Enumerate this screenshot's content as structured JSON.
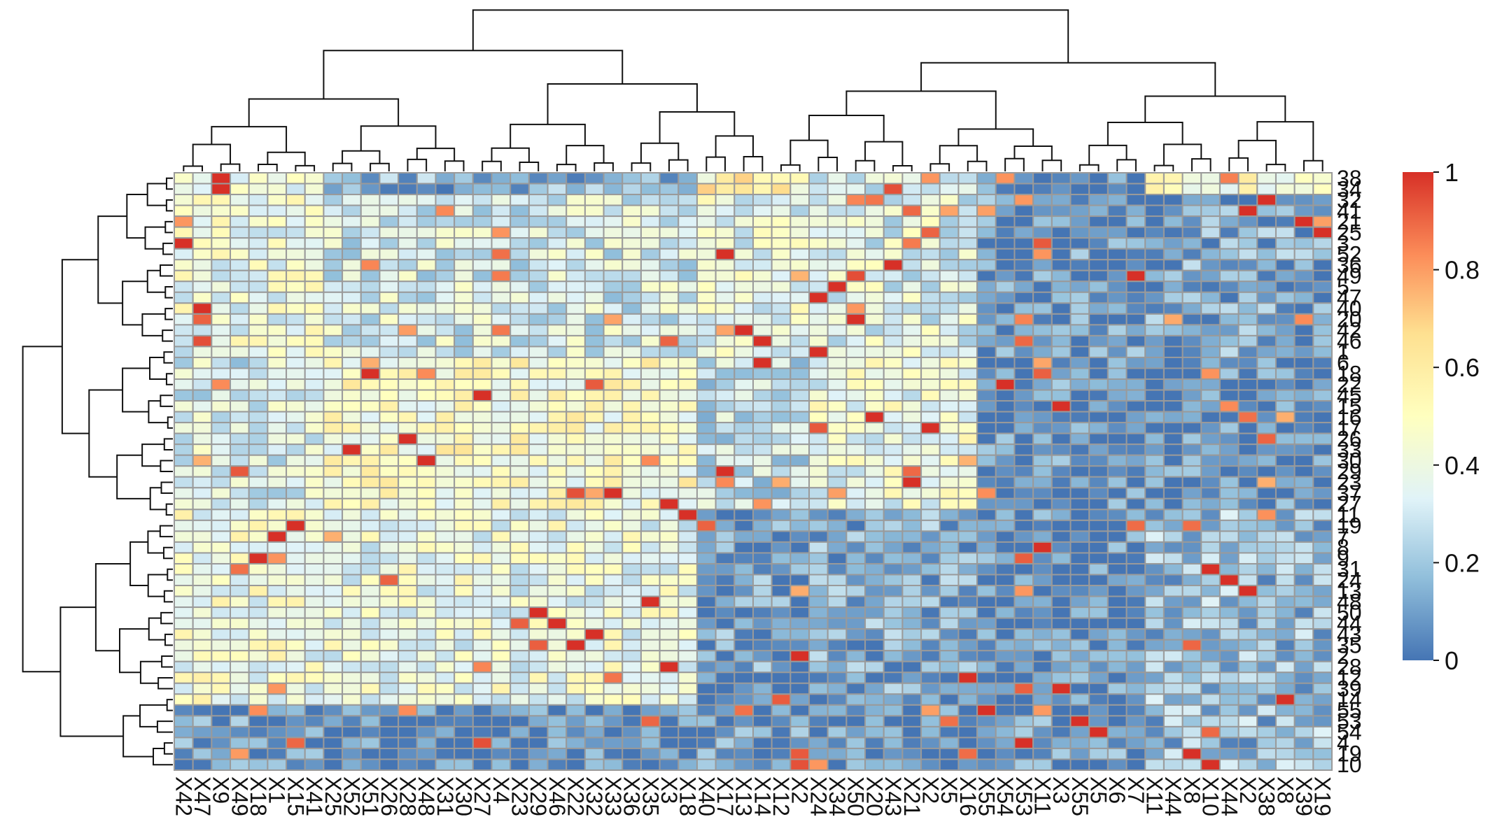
{
  "chart_data": {
    "type": "heatmap",
    "title": "",
    "xlabel": "",
    "ylabel": "",
    "value_range": [
      0,
      1
    ],
    "colorbar": {
      "ticks": [
        0,
        0.2,
        0.4,
        0.6,
        0.8,
        1
      ],
      "tick_labels": [
        "0",
        "0.2",
        "0.4",
        "0.6",
        "0.8",
        "1"
      ],
      "colors": [
        "#4575b4",
        "#91bfdb",
        "#e0f3f8",
        "#ffffbf",
        "#fee090",
        "#fc8d59",
        "#d73027"
      ],
      "legend_position": "right"
    },
    "column_labels": [
      "X42",
      "X47",
      "X9",
      "X49",
      "X18",
      "X1",
      "X15",
      "X41",
      "X25",
      "X52",
      "X51",
      "X26",
      "X28",
      "X48",
      "X31",
      "X30",
      "X27",
      "X4",
      "X23",
      "X29",
      "X46",
      "X22",
      "X32",
      "X33",
      "X36",
      "X35",
      "X3",
      "X18",
      "X40",
      "X17",
      "X13",
      "X14",
      "X12",
      "X2",
      "X24",
      "X34",
      "X50",
      "X20",
      "X43",
      "X21",
      "X2",
      "X5",
      "X16",
      "X55",
      "X54",
      "X53",
      "X11",
      "X3",
      "X55",
      "X5",
      "X6",
      "X7",
      "X11",
      "X44",
      "X8",
      "X10",
      "X44",
      "X2",
      "X38",
      "X8",
      "X39",
      "X19"
    ],
    "row_labels": [
      "38",
      "34",
      "32",
      "41",
      "21",
      "25",
      "3",
      "52",
      "36",
      "49",
      "5",
      "47",
      "40",
      "20",
      "42",
      "46",
      "1",
      "6",
      "18",
      "22",
      "45",
      "15",
      "16",
      "17",
      "26",
      "33",
      "30",
      "29",
      "23",
      "37",
      "27",
      "11",
      "19",
      "7",
      "8",
      "9",
      "31",
      "24",
      "13",
      "48",
      "50",
      "44",
      "43",
      "35",
      "2",
      "28",
      "12",
      "39",
      "14",
      "55",
      "53",
      "54",
      "4",
      "19",
      "10"
    ],
    "seed": 7,
    "column_groups": [
      0,
      0,
      0,
      0,
      0,
      0,
      0,
      0,
      1,
      1,
      1,
      1,
      1,
      1,
      1,
      1,
      1,
      1,
      1,
      1,
      1,
      1,
      1,
      1,
      1,
      1,
      1,
      1,
      2,
      2,
      2,
      2,
      2,
      2,
      3,
      3,
      3,
      3,
      3,
      3,
      3,
      3,
      3,
      4,
      4,
      4,
      4,
      4,
      4,
      4,
      4,
      4,
      5,
      5,
      5,
      5,
      5,
      5,
      5,
      5,
      5,
      5
    ],
    "row_groups": [
      0,
      0,
      1,
      1,
      1,
      1,
      1,
      1,
      1,
      1,
      1,
      1,
      1,
      1,
      1,
      1,
      1,
      2,
      2,
      2,
      2,
      2,
      2,
      2,
      2,
      2,
      2,
      2,
      2,
      2,
      2,
      3,
      3,
      3,
      3,
      3,
      3,
      3,
      3,
      3,
      3,
      3,
      3,
      3,
      3,
      3,
      3,
      3,
      3,
      4,
      4,
      4,
      4,
      4,
      4
    ],
    "group_means": [
      [
        0.45,
        0.15,
        0.55,
        0.3,
        0.05,
        0.5
      ],
      [
        0.4,
        0.32,
        0.38,
        0.35,
        0.08,
        0.12
      ],
      [
        0.32,
        0.48,
        0.28,
        0.4,
        0.06,
        0.05
      ],
      [
        0.42,
        0.4,
        0.1,
        0.12,
        0.05,
        0.18
      ],
      [
        0.08,
        0.04,
        0.08,
        0.05,
        0.08,
        0.18
      ]
    ],
    "diagonal_highlights": [
      [
        0,
        2
      ],
      [
        1,
        2
      ],
      [
        2,
        58
      ],
      [
        3,
        57
      ],
      [
        4,
        60
      ],
      [
        5,
        61
      ],
      [
        6,
        0
      ],
      [
        7,
        29
      ],
      [
        8,
        38
      ],
      [
        9,
        51
      ],
      [
        10,
        35
      ],
      [
        11,
        34
      ],
      [
        12,
        1
      ],
      [
        13,
        36
      ],
      [
        14,
        30
      ],
      [
        15,
        31
      ],
      [
        16,
        34
      ],
      [
        17,
        31
      ],
      [
        18,
        10
      ],
      [
        19,
        44
      ],
      [
        20,
        16
      ],
      [
        21,
        47
      ],
      [
        22,
        37
      ],
      [
        23,
        40
      ],
      [
        24,
        12
      ],
      [
        25,
        9
      ],
      [
        26,
        13
      ],
      [
        27,
        29
      ],
      [
        28,
        39
      ],
      [
        29,
        23
      ],
      [
        30,
        26
      ],
      [
        31,
        27
      ],
      [
        32,
        6
      ],
      [
        33,
        5
      ],
      [
        34,
        46
      ],
      [
        35,
        4
      ],
      [
        36,
        55
      ],
      [
        37,
        56
      ],
      [
        38,
        57
      ],
      [
        39,
        25
      ],
      [
        40,
        19
      ],
      [
        41,
        20
      ],
      [
        42,
        22
      ],
      [
        43,
        21
      ],
      [
        44,
        33
      ],
      [
        45,
        26
      ],
      [
        46,
        42
      ],
      [
        47,
        47
      ],
      [
        48,
        59
      ],
      [
        49,
        43
      ],
      [
        50,
        48
      ],
      [
        51,
        49
      ],
      [
        52,
        45
      ],
      [
        53,
        54
      ],
      [
        54,
        55
      ]
    ],
    "tree_leaf_order_note": "row and column dendrograms drawn above and left of the matrix"
  }
}
